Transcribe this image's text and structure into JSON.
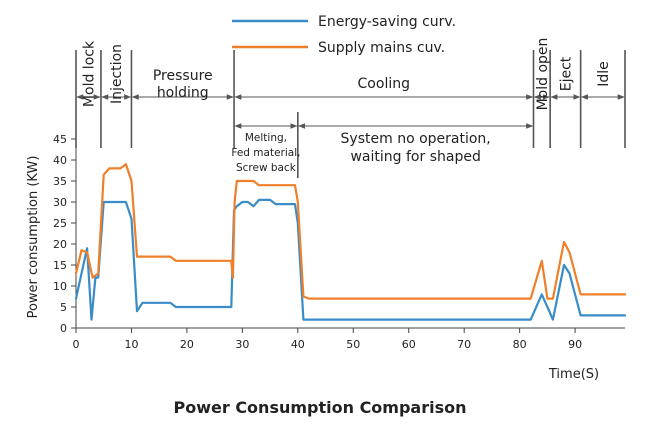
{
  "chart_data": {
    "type": "line",
    "title": "Power Consumption Comparison",
    "xlabel": "Time(S)",
    "ylabel": "Power consumption (KW)",
    "xlim": [
      0,
      100
    ],
    "ylim": [
      0,
      45
    ],
    "x_ticks": [
      0,
      10,
      20,
      30,
      40,
      50,
      60,
      70,
      80,
      90
    ],
    "y_ticks": [
      0,
      5,
      10,
      15,
      20,
      25,
      30,
      35,
      40,
      45
    ],
    "grid": false,
    "legend_position": "top-center",
    "series": [
      {
        "name": "Energy-saving curv.",
        "color": "#3a8cc8",
        "points": [
          [
            0,
            7
          ],
          [
            1.5,
            16
          ],
          [
            2,
            19
          ],
          [
            2.8,
            2
          ],
          [
            3.5,
            12
          ],
          [
            4,
            12
          ],
          [
            5,
            30
          ],
          [
            9,
            30
          ],
          [
            10,
            26
          ],
          [
            11,
            4
          ],
          [
            12,
            6
          ],
          [
            17,
            6
          ],
          [
            18,
            5
          ],
          [
            28,
            5
          ],
          [
            28.5,
            28
          ],
          [
            29,
            29
          ],
          [
            30,
            30
          ],
          [
            31,
            30
          ],
          [
            32,
            29
          ],
          [
            33,
            30.5
          ],
          [
            35,
            30.5
          ],
          [
            36,
            29.5
          ],
          [
            39.5,
            29.5
          ],
          [
            40,
            25
          ],
          [
            41,
            2
          ],
          [
            82,
            2
          ],
          [
            84,
            8
          ],
          [
            85,
            5
          ],
          [
            86,
            2
          ],
          [
            88,
            15
          ],
          [
            89,
            13
          ],
          [
            91,
            3
          ],
          [
            99,
            3
          ]
        ]
      },
      {
        "name": "Supply mains cuv.",
        "color": "#f07f2a",
        "points": [
          [
            0,
            13
          ],
          [
            1,
            18.5
          ],
          [
            2,
            18
          ],
          [
            3,
            12
          ],
          [
            4,
            13
          ],
          [
            5,
            36.5
          ],
          [
            6,
            38
          ],
          [
            8,
            38
          ],
          [
            9,
            39
          ],
          [
            10,
            35
          ],
          [
            11,
            17
          ],
          [
            17,
            17
          ],
          [
            18,
            16
          ],
          [
            28,
            16
          ],
          [
            28.3,
            12
          ],
          [
            28.6,
            30
          ],
          [
            29,
            35
          ],
          [
            32,
            35
          ],
          [
            33,
            34
          ],
          [
            39.5,
            34
          ],
          [
            40,
            30
          ],
          [
            41,
            7.5
          ],
          [
            42,
            7
          ],
          [
            82,
            7
          ],
          [
            84,
            16
          ],
          [
            85,
            7
          ],
          [
            86,
            7
          ],
          [
            88,
            20.5
          ],
          [
            89,
            18
          ],
          [
            91,
            8
          ],
          [
            99,
            8
          ]
        ]
      }
    ],
    "phases": [
      {
        "label": "Mold lock",
        "start": 0,
        "end": 4.5,
        "vertical": true
      },
      {
        "label": "Injection",
        "start": 4.5,
        "end": 10,
        "vertical": true
      },
      {
        "label": "Pressure holding",
        "start": 10,
        "end": 28.5,
        "vertical": false,
        "lines": [
          "Pressure",
          "holding"
        ]
      },
      {
        "label": "Cooling",
        "start": 28.5,
        "end": 82.5,
        "vertical": false,
        "lines": [
          "Cooling"
        ]
      },
      {
        "label": "Mold open",
        "start": 82.5,
        "end": 85.5,
        "vertical": true
      },
      {
        "label": "Eject",
        "start": 85.5,
        "end": 91,
        "vertical": true
      },
      {
        "label": "Idle",
        "start": 91,
        "end": 99,
        "vertical": true
      }
    ],
    "sub_phases": [
      {
        "start": 28.5,
        "end": 40,
        "lines": [
          "Melting,",
          "Fed material,",
          "Screw back"
        ]
      },
      {
        "start": 40,
        "end": 82.5,
        "lines": [
          "System no operation,",
          "waiting for shaped"
        ]
      }
    ]
  }
}
